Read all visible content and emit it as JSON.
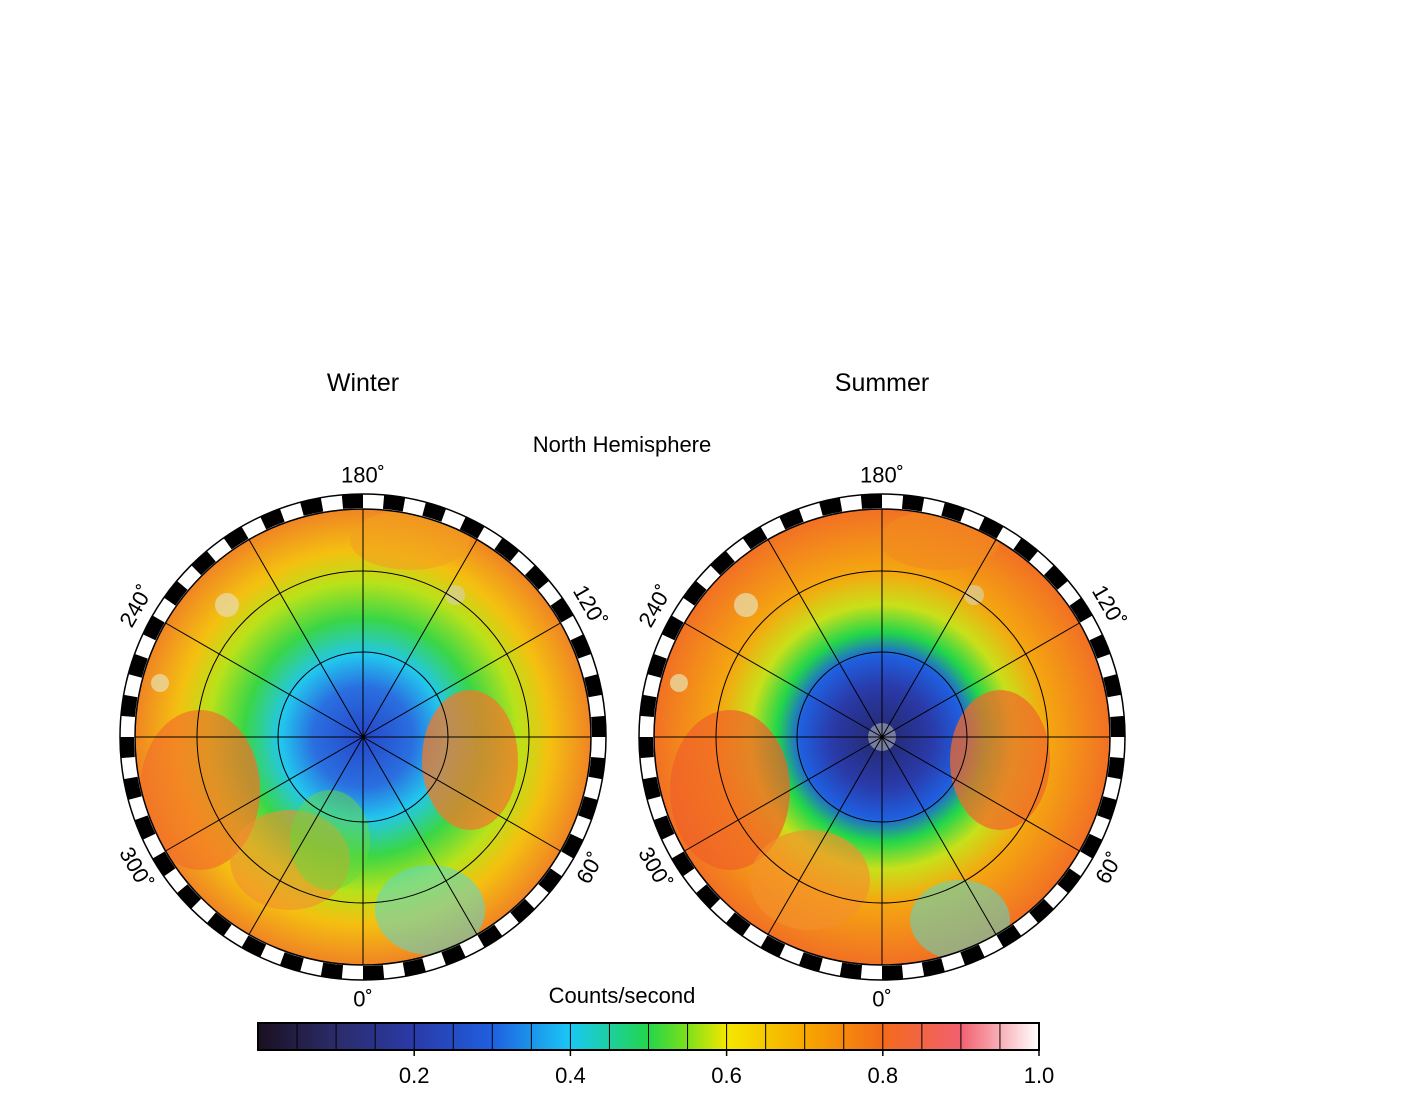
{
  "figure": {
    "hemisphere": "North Hemisphere",
    "colorbar_title": "Counts/second"
  },
  "maps": [
    {
      "title": "Winter",
      "lon_labels": [
        {
          "deg": 0,
          "text": "0˚"
        },
        {
          "deg": 60,
          "text": "60˚"
        },
        {
          "deg": 120,
          "text": "120˚"
        },
        {
          "deg": 180,
          "text": "180˚"
        },
        {
          "deg": 240,
          "text": "240˚"
        },
        {
          "deg": 300,
          "text": "300˚"
        }
      ]
    },
    {
      "title": "Summer",
      "lon_labels": [
        {
          "deg": 0,
          "text": "0˚"
        },
        {
          "deg": 60,
          "text": "60˚"
        },
        {
          "deg": 120,
          "text": "120˚"
        },
        {
          "deg": 180,
          "text": "180˚"
        },
        {
          "deg": 240,
          "text": "240˚"
        },
        {
          "deg": 300,
          "text": "300˚"
        }
      ]
    }
  ],
  "colorbar": {
    "min": 0,
    "max": 1.0,
    "ticks": [
      {
        "value": 0.2,
        "label": "0.2"
      },
      {
        "value": 0.4,
        "label": "0.4"
      },
      {
        "value": 0.6,
        "label": "0.6"
      },
      {
        "value": 0.8,
        "label": "0.8"
      },
      {
        "value": 1.0,
        "label": "1.0"
      }
    ],
    "stops": [
      {
        "value": 0.0,
        "color": "#1a1020"
      },
      {
        "value": 0.1,
        "color": "#2b2c6a"
      },
      {
        "value": 0.2,
        "color": "#2a3aa8"
      },
      {
        "value": 0.3,
        "color": "#1f5fe0"
      },
      {
        "value": 0.4,
        "color": "#19c8f5"
      },
      {
        "value": 0.5,
        "color": "#22d64a"
      },
      {
        "value": 0.55,
        "color": "#7ee01a"
      },
      {
        "value": 0.6,
        "color": "#f5e800"
      },
      {
        "value": 0.7,
        "color": "#f7a800"
      },
      {
        "value": 0.8,
        "color": "#f36a1a"
      },
      {
        "value": 0.9,
        "color": "#f26070"
      },
      {
        "value": 1.0,
        "color": "#ffffff"
      }
    ]
  }
}
